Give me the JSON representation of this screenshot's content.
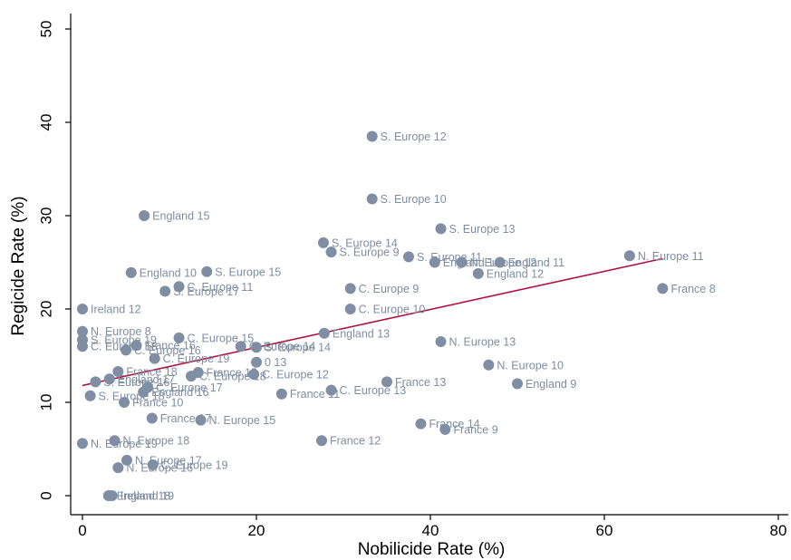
{
  "chart_data": {
    "type": "scatter",
    "xlabel": "Nobilicide Rate (%)",
    "ylabel": "Regicide Rate (%)",
    "xlim": [
      0,
      80
    ],
    "ylim": [
      0,
      50
    ],
    "xticks": [
      0,
      20,
      40,
      60,
      80
    ],
    "yticks": [
      0,
      10,
      20,
      30,
      40,
      50
    ],
    "grid": false,
    "legend": "none",
    "colors": {
      "marker": "#7f8ea3",
      "label": "#7f8ea3",
      "fit_line": "#b3123e",
      "axis": "#000000"
    },
    "points": [
      {
        "x": 33.3,
        "y": 38.5,
        "label": "S. Europe 12"
      },
      {
        "x": 33.3,
        "y": 31.8,
        "label": "S. Europe 10"
      },
      {
        "x": 7.1,
        "y": 30.0,
        "label": "England 15"
      },
      {
        "x": 41.2,
        "y": 28.6,
        "label": "S. Europe 13"
      },
      {
        "x": 27.7,
        "y": 27.1,
        "label": "S. Europe 14"
      },
      {
        "x": 28.6,
        "y": 26.1,
        "label": "S. Europe 9"
      },
      {
        "x": 37.5,
        "y": 25.6,
        "label": "S. Europe 11"
      },
      {
        "x": 40.5,
        "y": 25.0,
        "label": "England 14"
      },
      {
        "x": 43.6,
        "y": 25.0,
        "label": "N. Europe 12"
      },
      {
        "x": 48.0,
        "y": 25.0,
        "label": "England 11"
      },
      {
        "x": 62.9,
        "y": 25.7,
        "label": "N. Europe 11"
      },
      {
        "x": 5.6,
        "y": 23.9,
        "label": "England 10"
      },
      {
        "x": 14.3,
        "y": 24.0,
        "label": "S. Europe 15"
      },
      {
        "x": 45.5,
        "y": 23.8,
        "label": "England 12"
      },
      {
        "x": 11.1,
        "y": 22.4,
        "label": "C. Europe 11"
      },
      {
        "x": 9.5,
        "y": 21.9,
        "label": "S. Europe 17"
      },
      {
        "x": 30.8,
        "y": 22.2,
        "label": "C. Europe 9"
      },
      {
        "x": 66.7,
        "y": 22.2,
        "label": "France 8"
      },
      {
        "x": 0.0,
        "y": 20.0,
        "label": "Ireland 12"
      },
      {
        "x": 30.8,
        "y": 20.0,
        "label": "C. Europe 10"
      },
      {
        "x": 0.0,
        "y": 17.6,
        "label": "N. Europe 8"
      },
      {
        "x": 27.8,
        "y": 17.4,
        "label": "England 13"
      },
      {
        "x": 11.1,
        "y": 16.9,
        "label": "C. Europe 15"
      },
      {
        "x": 0.0,
        "y": 16.7,
        "label": "S. Europe 19"
      },
      {
        "x": 41.2,
        "y": 16.5,
        "label": "N. Europe 13"
      },
      {
        "x": 0.0,
        "y": 16.0,
        "label": "C. Europe 18"
      },
      {
        "x": 6.2,
        "y": 16.1,
        "label": "France 16"
      },
      {
        "x": 18.2,
        "y": 16.0,
        "label": "C. Europe 14"
      },
      {
        "x": 20.0,
        "y": 15.9,
        "label": "S. Europe 14"
      },
      {
        "x": 5.0,
        "y": 15.6,
        "label": "C. Europe 16"
      },
      {
        "x": 8.3,
        "y": 14.7,
        "label": "C. Europe 19"
      },
      {
        "x": 20.0,
        "y": 14.3,
        "label": "0 13"
      },
      {
        "x": 46.7,
        "y": 14.0,
        "label": "N. Europe 10"
      },
      {
        "x": 4.1,
        "y": 13.3,
        "label": "France 18"
      },
      {
        "x": 13.3,
        "y": 13.2,
        "label": "France 15"
      },
      {
        "x": 12.5,
        "y": 12.8,
        "label": "C. Europe 18"
      },
      {
        "x": 19.7,
        "y": 13.0,
        "label": "C. Europe 12"
      },
      {
        "x": 3.1,
        "y": 12.5,
        "label": "England 17"
      },
      {
        "x": 1.5,
        "y": 12.2,
        "label": "S. Europe 16"
      },
      {
        "x": 35.0,
        "y": 12.2,
        "label": "France 13"
      },
      {
        "x": 50.0,
        "y": 12.0,
        "label": "England 9"
      },
      {
        "x": 7.5,
        "y": 11.6,
        "label": "C. Europe 17"
      },
      {
        "x": 7.0,
        "y": 11.1,
        "label": "England 16"
      },
      {
        "x": 28.6,
        "y": 11.3,
        "label": "C. Europe 13"
      },
      {
        "x": 22.9,
        "y": 10.9,
        "label": "France 11"
      },
      {
        "x": 0.9,
        "y": 10.7,
        "label": "S. Europe 18"
      },
      {
        "x": 4.8,
        "y": 10.0,
        "label": "France 10"
      },
      {
        "x": 8.0,
        "y": 8.3,
        "label": "France 17"
      },
      {
        "x": 13.6,
        "y": 8.1,
        "label": "N. Europe 15"
      },
      {
        "x": 38.9,
        "y": 7.7,
        "label": "France 14"
      },
      {
        "x": 41.7,
        "y": 7.1,
        "label": "France 9"
      },
      {
        "x": 3.7,
        "y": 5.9,
        "label": "N. Europe 18"
      },
      {
        "x": 27.5,
        "y": 5.9,
        "label": "France 12"
      },
      {
        "x": 0.0,
        "y": 5.6,
        "label": "N. Europe 19"
      },
      {
        "x": 5.1,
        "y": 3.8,
        "label": "N. Europe 17"
      },
      {
        "x": 8.1,
        "y": 3.3,
        "label": "C. Europe 19"
      },
      {
        "x": 4.1,
        "y": 3.0,
        "label": "N. Europe 16"
      },
      {
        "x": 3.0,
        "y": 0.0,
        "label": "England 19"
      },
      {
        "x": 3.4,
        "y": 0.0,
        "label": "Ireland 18"
      }
    ],
    "fit_line": {
      "x": [
        0,
        66.7
      ],
      "y": [
        11.8,
        25.4
      ]
    }
  }
}
